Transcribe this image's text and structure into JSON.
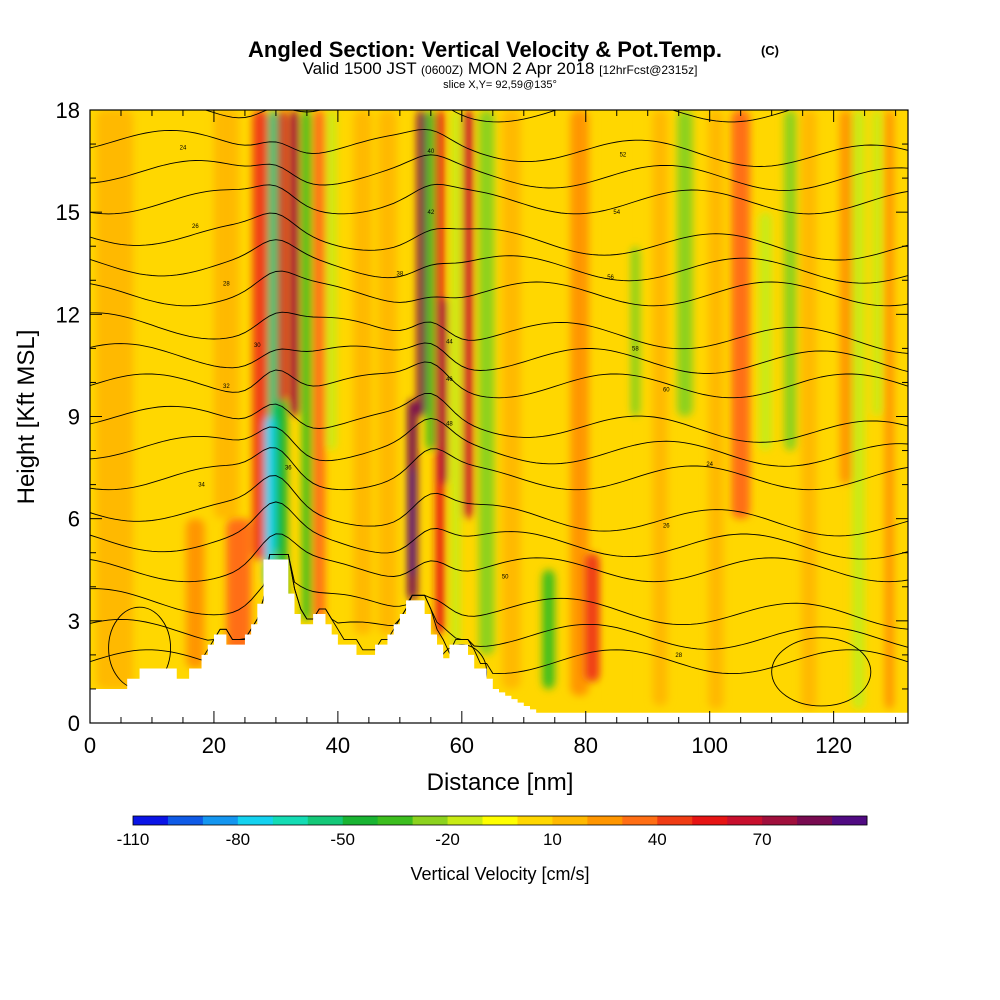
{
  "header": {
    "title": "Angled Section: Vertical Velocity & Pot.Temp.",
    "title_tag": "(C)",
    "valid_prefix": "Valid 1500 JST",
    "valid_zulu": "(0600Z)",
    "valid_date": "MON 2 Apr 2018",
    "forecast": "[12hrFcst@2315z]",
    "slice": "slice X,Y= 92,59@135°"
  },
  "colors": {
    "colorbar": [
      "#0a14e6",
      "#0f5ae6",
      "#1496f0",
      "#14d2f0",
      "#14dcb4",
      "#14c878",
      "#19b432",
      "#3cbe1e",
      "#8cd21e",
      "#c8eb14",
      "#ffff00",
      "#ffd700",
      "#ffb900",
      "#ff9600",
      "#ff6e14",
      "#f03c14",
      "#e61414",
      "#c80f2d",
      "#a00f3c",
      "#780a50",
      "#500a82"
    ],
    "terrain": "#ffffff",
    "contour": "#000000"
  },
  "chart_data": {
    "type": "heatmap",
    "title": "Angled Section: Vertical Velocity & Pot.Temp. (C)",
    "xlabel": "Distance [nm]",
    "ylabel": "Height [Kft MSL]",
    "xlim": [
      0,
      132
    ],
    "ylim": [
      0,
      18
    ],
    "xticks": [
      0,
      20,
      40,
      60,
      80,
      100,
      120
    ],
    "yticks": [
      0,
      3,
      6,
      9,
      12,
      15,
      18
    ],
    "colorbar": {
      "label": "Vertical Velocity [cm/s]",
      "levels": [
        -110,
        -100,
        -90,
        -80,
        -70,
        -60,
        -50,
        -40,
        -30,
        -20,
        -10,
        0,
        10,
        20,
        30,
        40,
        50,
        60,
        70,
        80,
        90
      ],
      "labels": [
        "-110",
        "-80",
        "-50",
        "-20",
        "10",
        "40",
        "70"
      ]
    },
    "terrain_profile": {
      "x": [
        0,
        5,
        6,
        8,
        9,
        13,
        14,
        15,
        16,
        17,
        18,
        19,
        20,
        21,
        22,
        23,
        24,
        25,
        26,
        27,
        28,
        31,
        32,
        33,
        34,
        35,
        36,
        37,
        38,
        39,
        40,
        41,
        42,
        43,
        44,
        45,
        46,
        47,
        48,
        49,
        50,
        51,
        52,
        53,
        54,
        55,
        56,
        57,
        58,
        59,
        60,
        61,
        62,
        63,
        64,
        65,
        66,
        67,
        68,
        69,
        70,
        71,
        72,
        73,
        132
      ],
      "height": [
        1.0,
        1.0,
        1.3,
        1.6,
        1.6,
        1.6,
        1.3,
        1.3,
        1.6,
        1.6,
        2.0,
        2.3,
        2.6,
        2.6,
        2.3,
        2.3,
        2.3,
        2.6,
        2.9,
        3.5,
        4.8,
        4.8,
        3.8,
        3.2,
        2.9,
        2.9,
        3.2,
        3.2,
        2.9,
        2.6,
        2.3,
        2.3,
        2.3,
        2.0,
        2.0,
        2.0,
        2.3,
        2.3,
        2.6,
        2.9,
        3.2,
        3.6,
        3.6,
        3.6,
        3.2,
        2.6,
        2.3,
        1.9,
        2.3,
        2.3,
        2.3,
        2.0,
        1.6,
        1.6,
        1.3,
        1.0,
        0.9,
        0.8,
        0.7,
        0.6,
        0.5,
        0.4,
        0.3,
        0.3,
        0.3
      ]
    },
    "contour_labels": [
      "24",
      "26",
      "28",
      "30",
      "32",
      "34",
      "36",
      "38",
      "40",
      "42",
      "44",
      "46",
      "48",
      "50",
      "52",
      "54",
      "56",
      "58",
      "60"
    ]
  }
}
